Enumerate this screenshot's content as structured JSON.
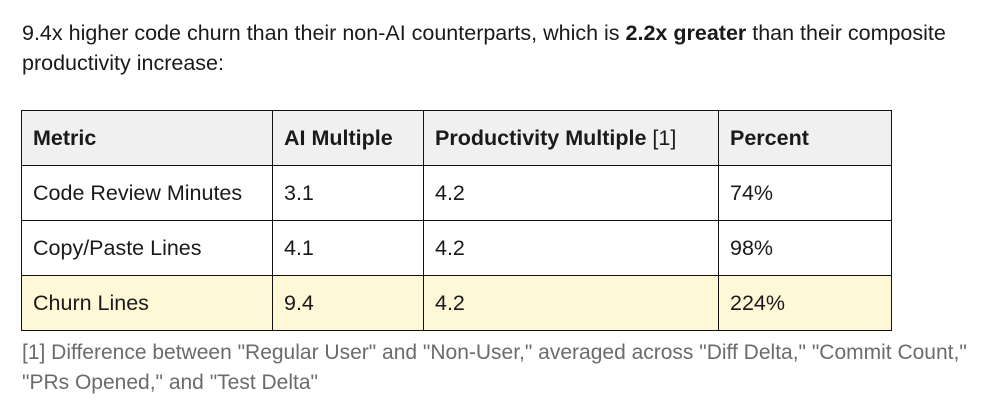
{
  "intro": {
    "text_before": "9.4x higher code churn than their non-AI counterparts, which is ",
    "bold": "2.2x greater",
    "text_after": " than their composite productivity increase:"
  },
  "table": {
    "headers": {
      "metric": "Metric",
      "ai_multiple": "AI Multiple",
      "productivity_multiple": "Productivity Multiple",
      "productivity_ref": "[1]",
      "percent": "Percent"
    },
    "rows": [
      {
        "metric": "Code Review Minutes",
        "ai_multiple": "3.1",
        "productivity_multiple": "4.2",
        "percent": "74%"
      },
      {
        "metric": "Copy/Paste Lines",
        "ai_multiple": "4.1",
        "productivity_multiple": "4.2",
        "percent": "98%"
      },
      {
        "metric": "Churn Lines",
        "ai_multiple": "9.4",
        "productivity_multiple": "4.2",
        "percent": "224%"
      }
    ],
    "highlight_color": "#fff8d6",
    "header_color": "#f0f0f0"
  },
  "footnote": "[1] Difference between \"Regular User\" and \"Non-User,\" averaged across \"Diff Delta,\" \"Commit Count,\" \"PRs Opened,\" and \"Test Delta\""
}
